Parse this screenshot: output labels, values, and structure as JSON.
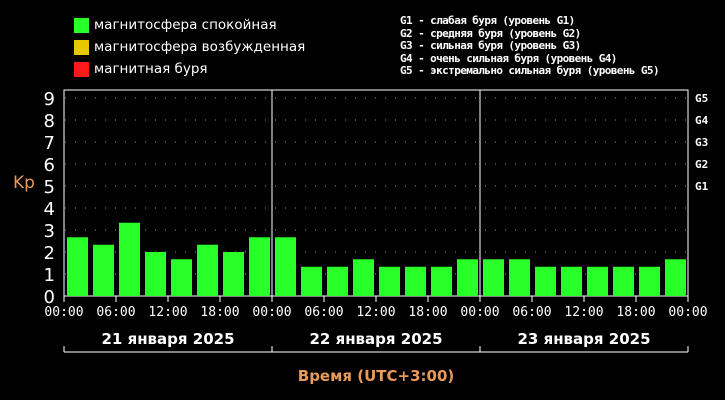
{
  "legend": {
    "quiet": {
      "label": "магнитосфера спокойная",
      "color": "#29ff29"
    },
    "excited": {
      "label": "магнитосфера возбужденная",
      "color": "#e8c800"
    },
    "storm": {
      "label": "магнитная буря",
      "color": "#ff1a1a"
    }
  },
  "storm_levels": [
    "G1 - слабая буря (уровень G1)",
    "G2 - средняя буря (уровень G2)",
    "G3 - сильная буря (уровень G3)",
    "G4 - очень сильная буря (уровень G4)",
    "G5 - экстремально сильная буря (уровень G5)"
  ],
  "chart_data": {
    "type": "bar",
    "ylabel": "Kp",
    "xlabel": "Время (UTC+3:00)",
    "ylim": [
      0,
      9
    ],
    "yticks": [
      "0",
      "1",
      "2",
      "3",
      "4",
      "5",
      "6",
      "7",
      "8",
      "9"
    ],
    "right_ticks": [
      {
        "label": "G1",
        "value": 5
      },
      {
        "label": "G2",
        "value": 6
      },
      {
        "label": "G3",
        "value": 7
      },
      {
        "label": "G4",
        "value": 8
      },
      {
        "label": "G5",
        "value": 9
      }
    ],
    "xtick_labels": [
      "00:00",
      "06:00",
      "12:00",
      "18:00",
      "00:00",
      "06:00",
      "12:00",
      "18:00",
      "00:00",
      "06:00",
      "12:00",
      "18:00",
      "00:00"
    ],
    "days": [
      "21 января 2025",
      "22 января 2025",
      "23 января 2025"
    ],
    "bar_color": "#29ff29",
    "grid": true,
    "values": [
      2.67,
      2.33,
      3.33,
      2.0,
      1.67,
      2.33,
      2.0,
      2.67,
      2.67,
      1.33,
      1.33,
      1.67,
      1.33,
      1.33,
      1.33,
      1.67,
      1.67,
      1.67,
      1.33,
      1.33,
      1.33,
      1.33,
      1.33,
      1.67
    ]
  }
}
